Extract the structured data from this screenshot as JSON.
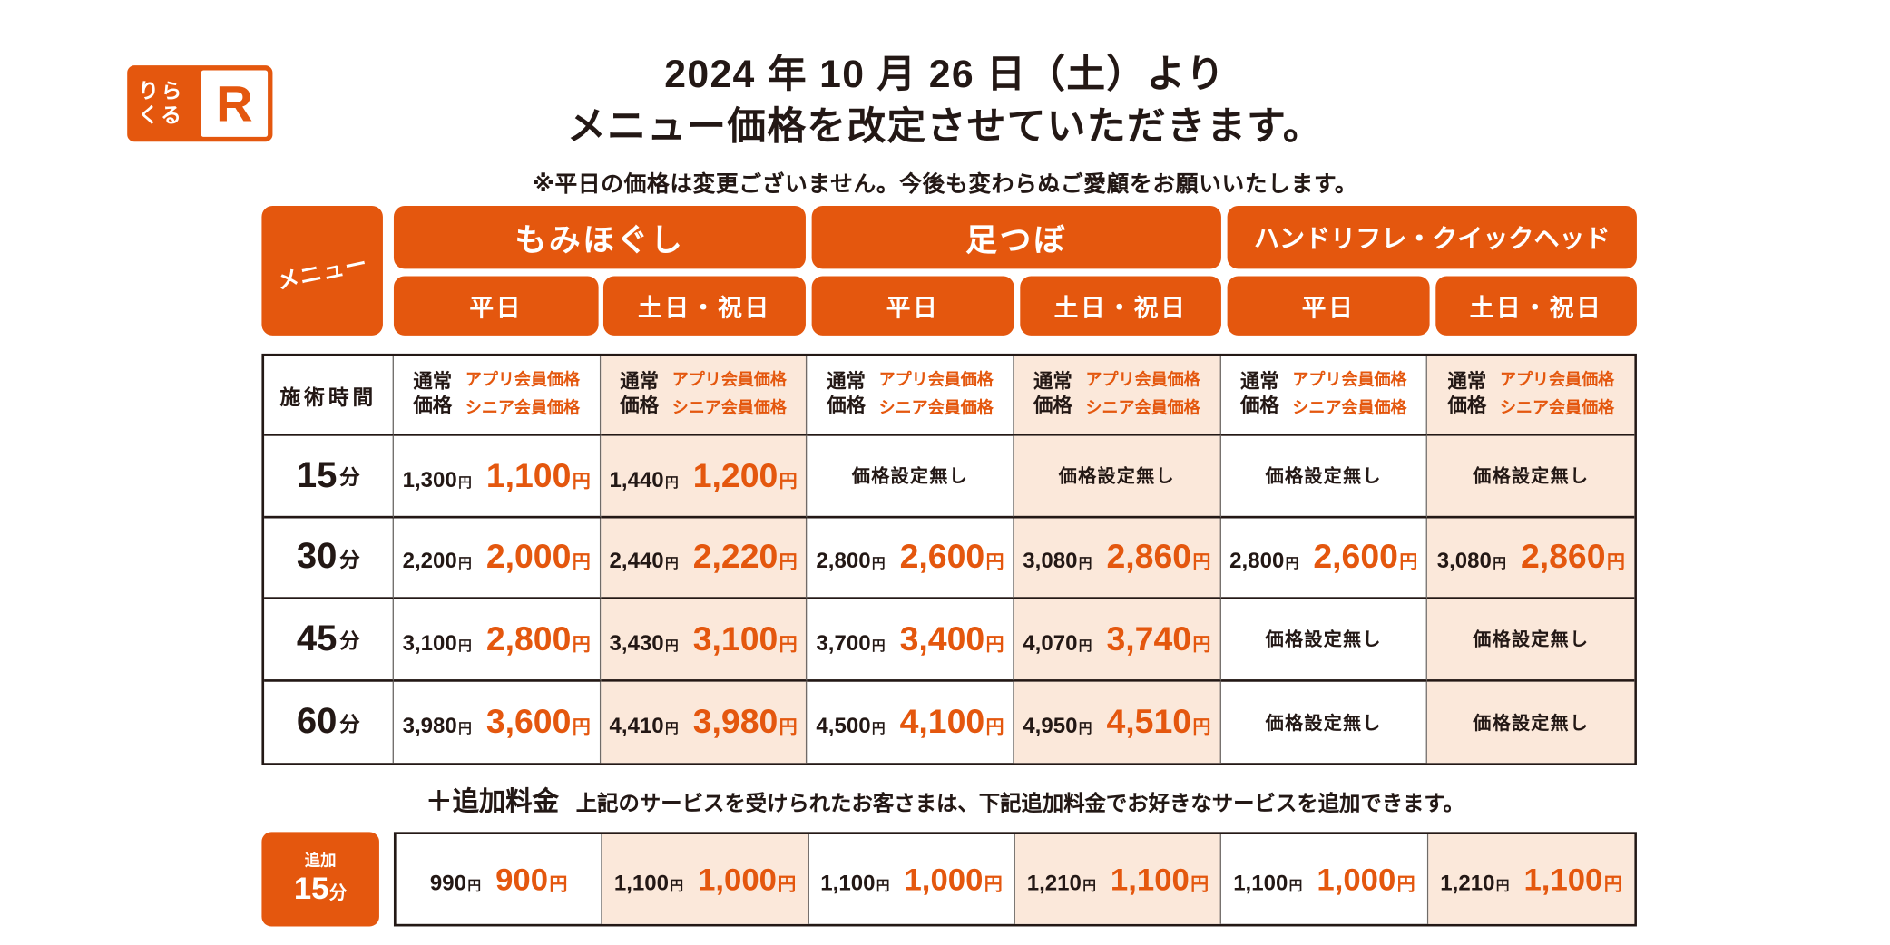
{
  "colors": {
    "orange": "#e4570e",
    "peach": "#fbe8da",
    "ink": "#231815"
  },
  "brand": {
    "logo_kana_top": "りら",
    "logo_kana_bottom": "くる",
    "logo_r": "R"
  },
  "header": {
    "title_line1": "2024 年 10 月 26 日（土）より",
    "title_line2": "メニュー価格を改定させていただきます。",
    "note": "※平日の価格は変更ございません。今後も変わらぬご愛顧をお願いいたします。"
  },
  "table": {
    "menu_label": "メニュー",
    "categories": [
      {
        "name": "もみほぐし",
        "days": [
          "平日",
          "土日・祝日"
        ]
      },
      {
        "name": "足つぼ",
        "days": [
          "平日",
          "土日・祝日"
        ]
      },
      {
        "name": "ハンドリフレ・クイックヘッド",
        "days": [
          "平日",
          "土日・祝日"
        ]
      }
    ],
    "time_header": "施術時間",
    "price_header": {
      "normal_line1": "通常",
      "normal_line2": "価格",
      "member_line1": "アプリ会員価格",
      "member_line2": "シニア会員価格"
    },
    "yen": "円",
    "rows": [
      {
        "time_num": "15",
        "time_unit": "分",
        "cells": [
          {
            "normal": "1,300",
            "member": "1,100"
          },
          {
            "normal": "1,440",
            "member": "1,200"
          },
          {
            "none": "価格設定無し"
          },
          {
            "none": "価格設定無し"
          },
          {
            "none": "価格設定無し"
          },
          {
            "none": "価格設定無し"
          }
        ]
      },
      {
        "time_num": "30",
        "time_unit": "分",
        "cells": [
          {
            "normal": "2,200",
            "member": "2,000"
          },
          {
            "normal": "2,440",
            "member": "2,220"
          },
          {
            "normal": "2,800",
            "member": "2,600"
          },
          {
            "normal": "3,080",
            "member": "2,860"
          },
          {
            "normal": "2,800",
            "member": "2,600"
          },
          {
            "normal": "3,080",
            "member": "2,860"
          }
        ]
      },
      {
        "time_num": "45",
        "time_unit": "分",
        "cells": [
          {
            "normal": "3,100",
            "member": "2,800"
          },
          {
            "normal": "3,430",
            "member": "3,100"
          },
          {
            "normal": "3,700",
            "member": "3,400"
          },
          {
            "normal": "4,070",
            "member": "3,740"
          },
          {
            "none": "価格設定無し"
          },
          {
            "none": "価格設定無し"
          }
        ]
      },
      {
        "time_num": "60",
        "time_unit": "分",
        "cells": [
          {
            "normal": "3,980",
            "member": "3,600"
          },
          {
            "normal": "4,410",
            "member": "3,980"
          },
          {
            "normal": "4,500",
            "member": "4,100"
          },
          {
            "normal": "4,950",
            "member": "4,510"
          },
          {
            "none": "価格設定無し"
          },
          {
            "none": "価格設定無し"
          }
        ]
      }
    ]
  },
  "addon": {
    "heading": "＋追加料金",
    "description": "上記のサービスを受けられたお客さまは、下記追加料金でお好きなサービスを追加できます。",
    "label_top": "追加",
    "time_num": "15",
    "time_unit": "分",
    "cells": [
      {
        "normal": "990",
        "member": "900"
      },
      {
        "normal": "1,100",
        "member": "1,000"
      },
      {
        "normal": "1,100",
        "member": "1,000"
      },
      {
        "normal": "1,210",
        "member": "1,100"
      },
      {
        "normal": "1,100",
        "member": "1,000"
      },
      {
        "normal": "1,210",
        "member": "1,100"
      }
    ]
  }
}
